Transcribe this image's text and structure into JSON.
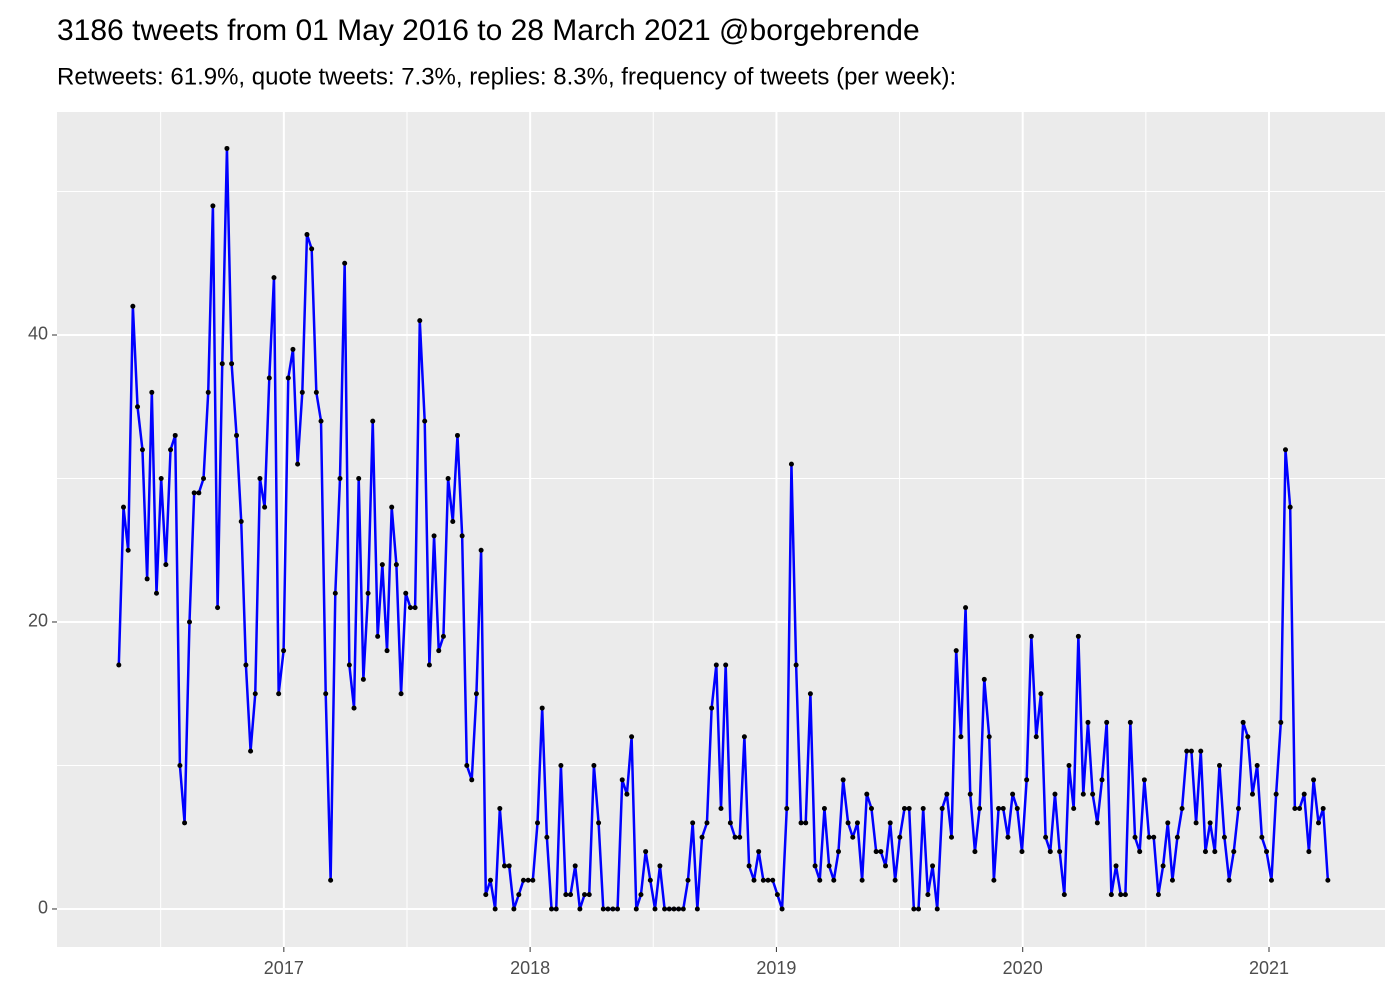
{
  "chart_data": {
    "type": "line",
    "title": "3186 tweets from 01 May 2016 to 28 March 2021 @borgebrende",
    "subtitle": "Retweets: 61.9%, quote tweets: 7.3%, replies: 8.3%, frequency of tweets (per week):",
    "x": [
      2016.33,
      2016.349,
      2016.368,
      2016.387,
      2016.406,
      2016.426,
      2016.445,
      2016.464,
      2016.483,
      2016.502,
      2016.521,
      2016.54,
      2016.559,
      2016.578,
      2016.597,
      2016.617,
      2016.636,
      2016.655,
      2016.674,
      2016.693,
      2016.712,
      2016.731,
      2016.75,
      2016.769,
      2016.788,
      2016.808,
      2016.827,
      2016.846,
      2016.865,
      2016.884,
      2016.903,
      2016.922,
      2016.941,
      2016.96,
      2016.979,
      2016.999,
      2017.018,
      2017.037,
      2017.056,
      2017.075,
      2017.094,
      2017.113,
      2017.132,
      2017.151,
      2017.17,
      2017.19,
      2017.209,
      2017.228,
      2017.247,
      2017.266,
      2017.285,
      2017.304,
      2017.323,
      2017.342,
      2017.361,
      2017.381,
      2017.4,
      2017.419,
      2017.438,
      2017.457,
      2017.476,
      2017.495,
      2017.514,
      2017.533,
      2017.552,
      2017.572,
      2017.591,
      2017.61,
      2017.629,
      2017.648,
      2017.667,
      2017.686,
      2017.705,
      2017.724,
      2017.743,
      2017.763,
      2017.782,
      2017.801,
      2017.82,
      2017.839,
      2017.858,
      2017.877,
      2017.896,
      2017.915,
      2017.934,
      2017.954,
      2017.973,
      2017.992,
      2018.011,
      2018.03,
      2018.049,
      2018.068,
      2018.087,
      2018.106,
      2018.125,
      2018.145,
      2018.164,
      2018.183,
      2018.202,
      2018.221,
      2018.24,
      2018.259,
      2018.278,
      2018.297,
      2018.316,
      2018.336,
      2018.355,
      2018.374,
      2018.393,
      2018.412,
      2018.431,
      2018.45,
      2018.469,
      2018.488,
      2018.507,
      2018.527,
      2018.546,
      2018.565,
      2018.584,
      2018.603,
      2018.622,
      2018.641,
      2018.66,
      2018.679,
      2018.698,
      2018.718,
      2018.737,
      2018.756,
      2018.775,
      2018.794,
      2018.813,
      2018.832,
      2018.851,
      2018.87,
      2018.889,
      2018.909,
      2018.928,
      2018.947,
      2018.966,
      2018.985,
      2019.004,
      2019.023,
      2019.042,
      2019.061,
      2019.08,
      2019.1,
      2019.119,
      2019.138,
      2019.157,
      2019.176,
      2019.195,
      2019.214,
      2019.233,
      2019.252,
      2019.271,
      2019.291,
      2019.31,
      2019.329,
      2019.348,
      2019.367,
      2019.386,
      2019.405,
      2019.424,
      2019.443,
      2019.462,
      2019.482,
      2019.501,
      2019.52,
      2019.539,
      2019.558,
      2019.577,
      2019.596,
      2019.615,
      2019.634,
      2019.653,
      2019.673,
      2019.692,
      2019.711,
      2019.73,
      2019.749,
      2019.768,
      2019.787,
      2019.806,
      2019.825,
      2019.844,
      2019.864,
      2019.883,
      2019.902,
      2019.921,
      2019.94,
      2019.959,
      2019.978,
      2019.997,
      2020.016,
      2020.035,
      2020.055,
      2020.074,
      2020.093,
      2020.112,
      2020.131,
      2020.15,
      2020.169,
      2020.188,
      2020.207,
      2020.226,
      2020.246,
      2020.265,
      2020.284,
      2020.303,
      2020.322,
      2020.341,
      2020.36,
      2020.379,
      2020.398,
      2020.417,
      2020.437,
      2020.456,
      2020.475,
      2020.494,
      2020.513,
      2020.532,
      2020.551,
      2020.57,
      2020.589,
      2020.608,
      2020.628,
      2020.647,
      2020.666,
      2020.685,
      2020.704,
      2020.723,
      2020.742,
      2020.761,
      2020.78,
      2020.799,
      2020.819,
      2020.838,
      2020.857,
      2020.876,
      2020.895,
      2020.914,
      2020.933,
      2020.952,
      2020.971,
      2020.99,
      2021.01,
      2021.029,
      2021.048,
      2021.067,
      2021.086,
      2021.105,
      2021.124,
      2021.143,
      2021.162,
      2021.181,
      2021.201,
      2021.22,
      2021.239
    ],
    "series": [
      {
        "color": "#0000ff",
        "marker_color": "#000000",
        "values": [
          17,
          28,
          25,
          42,
          35,
          32,
          23,
          36,
          22,
          30,
          24,
          32,
          33,
          10,
          6,
          20,
          29,
          29,
          30,
          36,
          49,
          21,
          38,
          53,
          38,
          33,
          27,
          17,
          11,
          15,
          30,
          28,
          37,
          44,
          15,
          18,
          37,
          39,
          31,
          36,
          47,
          46,
          36,
          34,
          15,
          2,
          22,
          30,
          45,
          17,
          14,
          30,
          16,
          22,
          34,
          19,
          24,
          18,
          28,
          24,
          15,
          22,
          21,
          21,
          41,
          34,
          17,
          26,
          18,
          19,
          30,
          27,
          33,
          26,
          10,
          9,
          15,
          25,
          1,
          2,
          0,
          7,
          3,
          3,
          0,
          1,
          2,
          2,
          2,
          6,
          14,
          5,
          0,
          0,
          10,
          1,
          1,
          3,
          0,
          1,
          1,
          10,
          6,
          0,
          0,
          0,
          0,
          9,
          8,
          12,
          0,
          1,
          4,
          2,
          0,
          3,
          0,
          0,
          0,
          0,
          0,
          2,
          6,
          0,
          5,
          6,
          14,
          17,
          7,
          17,
          6,
          5,
          5,
          12,
          3,
          2,
          4,
          2,
          2,
          2,
          1,
          0,
          7,
          31,
          17,
          6,
          6,
          15,
          3,
          2,
          7,
          3,
          2,
          4,
          9,
          6,
          5,
          6,
          2,
          8,
          7,
          4,
          4,
          3,
          6,
          2,
          5,
          7,
          7,
          0,
          0,
          7,
          1,
          3,
          0,
          7,
          8,
          5,
          18,
          12,
          21,
          8,
          4,
          7,
          16,
          12,
          2,
          7,
          7,
          5,
          8,
          7,
          4,
          9,
          19,
          12,
          15,
          5,
          4,
          8,
          4,
          1,
          10,
          7,
          19,
          8,
          13,
          8,
          6,
          9,
          13,
          1,
          3,
          1,
          1,
          13,
          5,
          4,
          9,
          5,
          5,
          1,
          3,
          6,
          2,
          5,
          7,
          11,
          11,
          6,
          11,
          4,
          6,
          4,
          10,
          5,
          2,
          4,
          7,
          13,
          12,
          8,
          10,
          5,
          4,
          2,
          8,
          13,
          32,
          28,
          7,
          7,
          8,
          4,
          9,
          6,
          7,
          2
        ]
      }
    ],
    "xlim": [
      2016.079,
      2021.471
    ],
    "ylim": [
      -2.65,
      55.54
    ],
    "xticks": [
      2017,
      2018,
      2019,
      2020,
      2021
    ],
    "yticks": [
      0,
      20,
      40
    ],
    "grid": true,
    "minor_grid": true
  }
}
